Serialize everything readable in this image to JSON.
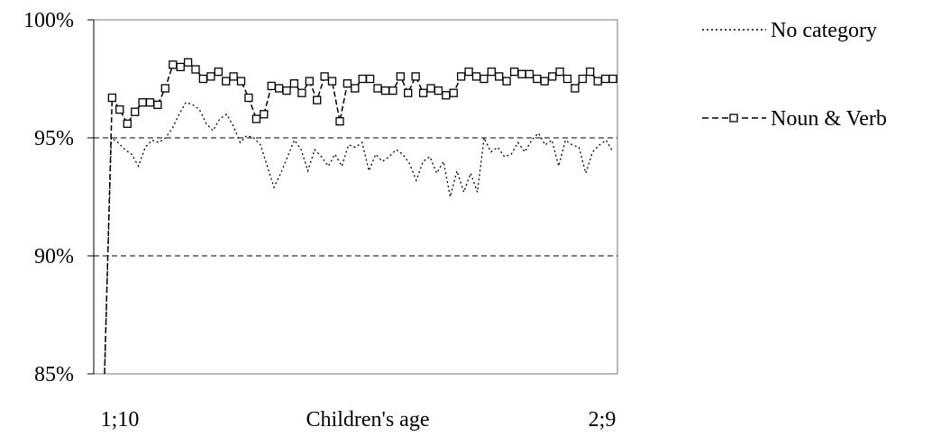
{
  "chart_data": {
    "type": "line",
    "xlabel": "Children's age",
    "x_tick_labels": [
      "1;10",
      "2;9"
    ],
    "ylim": [
      85,
      100
    ],
    "y_ticks": [
      85,
      90,
      95,
      100
    ],
    "y_tick_labels": [
      "85%",
      "90%",
      "95%",
      "100%"
    ],
    "grid": "horizontal dashed at 90% and 95%",
    "legend_position": "right",
    "series": [
      {
        "name": "No category",
        "style": "dotted",
        "color": "#000000",
        "values": [
          85.0,
          95.0,
          94.8,
          94.5,
          94.3,
          93.8,
          94.6,
          94.9,
          94.8,
          95.0,
          95.4,
          96.0,
          96.5,
          96.4,
          96.2,
          95.6,
          95.3,
          95.8,
          96.0,
          95.5,
          94.8,
          95.1,
          95.0,
          94.7,
          93.8,
          92.9,
          93.5,
          94.2,
          94.9,
          94.5,
          93.6,
          94.5,
          94.2,
          93.8,
          94.3,
          93.8,
          94.7,
          94.6,
          94.8,
          93.6,
          94.3,
          94.0,
          94.2,
          94.5,
          94.3,
          93.9,
          93.2,
          94.0,
          94.2,
          93.5,
          94.0,
          92.5,
          93.6,
          92.7,
          93.5,
          92.7,
          95.0,
          94.4,
          94.6,
          94.2,
          94.3,
          94.8,
          94.4,
          94.9,
          95.2,
          94.7,
          94.9,
          93.8,
          94.9,
          94.7,
          94.6,
          93.5,
          94.4,
          94.7,
          94.9,
          94.4
        ]
      },
      {
        "name": "Noun & Verb",
        "style": "dashed with square markers",
        "color": "#000000",
        "values": [
          85.0,
          96.7,
          96.2,
          95.6,
          96.1,
          96.5,
          96.5,
          96.4,
          97.1,
          98.1,
          98.0,
          98.2,
          97.9,
          97.5,
          97.6,
          97.8,
          97.4,
          97.6,
          97.4,
          96.7,
          95.8,
          96.0,
          97.2,
          97.1,
          97.0,
          97.3,
          96.9,
          97.4,
          96.6,
          97.6,
          97.4,
          95.7,
          97.3,
          97.1,
          97.5,
          97.5,
          97.1,
          97.0,
          97.0,
          97.6,
          96.9,
          97.6,
          96.9,
          97.1,
          97.0,
          96.8,
          96.9,
          97.6,
          97.8,
          97.6,
          97.5,
          97.8,
          97.6,
          97.4,
          97.8,
          97.7,
          97.7,
          97.5,
          97.4,
          97.6,
          97.8,
          97.5,
          97.1,
          97.5,
          97.8,
          97.4,
          97.5,
          97.5
        ]
      }
    ]
  }
}
